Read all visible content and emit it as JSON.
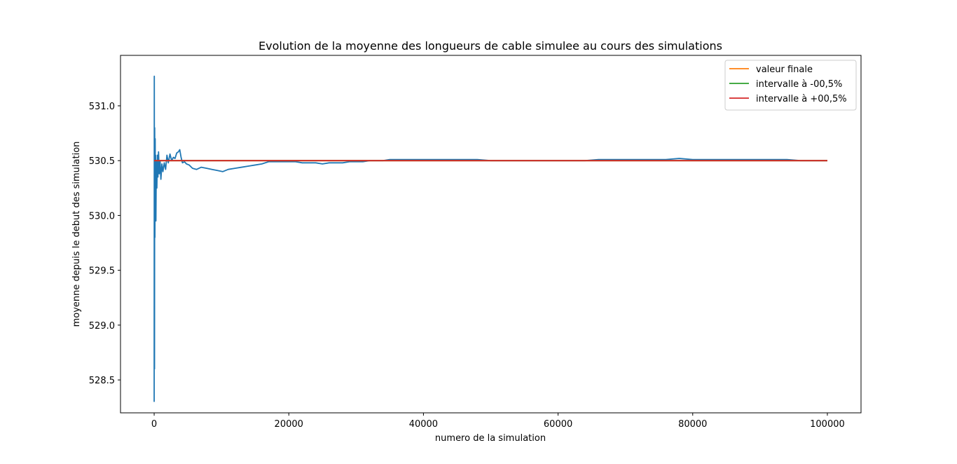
{
  "chart_data": {
    "type": "line",
    "title": "Evolution de la moyenne des longueurs de cable simulee au cours des simulations",
    "xlabel": "numero de la simulation",
    "ylabel": "moyenne depuis le debut des simulation",
    "xlim": [
      -5000,
      105000
    ],
    "ylim": [
      528.2,
      531.46
    ],
    "xticks": [
      0,
      20000,
      40000,
      60000,
      80000,
      100000
    ],
    "yticks": [
      528.5,
      529.0,
      529.5,
      530.0,
      530.5,
      531.0
    ],
    "ytick_labels": [
      "528.5",
      "529.0",
      "529.5",
      "530.0",
      "530.5",
      "531.0"
    ],
    "grid": false,
    "legend_position": "top-right",
    "series": [
      {
        "color": "#1f77b4",
        "x": [
          0,
          20,
          50,
          80,
          110,
          150,
          180,
          210,
          260,
          320,
          400,
          480,
          560,
          650,
          760,
          880,
          1000,
          1150,
          1300,
          1500,
          1700,
          1900,
          2100,
          2350,
          2600,
          2850,
          3100,
          3350,
          3600,
          3800,
          4000,
          4200,
          4500,
          4800,
          5200,
          5700,
          6300,
          7000,
          7800,
          8600,
          9400,
          10200,
          11000,
          12000,
          13000,
          14000,
          15000,
          16000,
          17000,
          18000,
          19000,
          20000,
          21000,
          22000,
          23000,
          24000,
          25000,
          26000,
          27000,
          28000,
          29000,
          30000,
          31000,
          32000,
          33000,
          34000,
          35000,
          36000,
          37000,
          38000,
          39000,
          40000,
          42000,
          44000,
          46000,
          48000,
          50000,
          52000,
          54000,
          56000,
          58000,
          60000,
          62000,
          64000,
          66000,
          68000,
          70000,
          72000,
          74000,
          76000,
          78000,
          80000,
          82000,
          84000,
          86000,
          88000,
          90000,
          92000,
          94000,
          96000,
          98000,
          100000
        ],
        "values": [
          528.3,
          531.27,
          528.6,
          530.8,
          529.8,
          530.7,
          530.0,
          530.55,
          529.95,
          530.5,
          530.25,
          530.55,
          530.35,
          530.58,
          530.38,
          530.5,
          530.33,
          530.47,
          530.4,
          530.48,
          530.42,
          530.55,
          530.48,
          530.56,
          530.5,
          530.53,
          530.52,
          530.57,
          530.58,
          530.6,
          530.53,
          530.48,
          530.49,
          530.47,
          530.46,
          530.43,
          530.42,
          530.44,
          530.43,
          530.42,
          530.41,
          530.4,
          530.42,
          530.43,
          530.44,
          530.45,
          530.46,
          530.47,
          530.49,
          530.49,
          530.49,
          530.49,
          530.49,
          530.48,
          530.48,
          530.48,
          530.47,
          530.48,
          530.48,
          530.48,
          530.49,
          530.49,
          530.49,
          530.5,
          530.5,
          530.5,
          530.51,
          530.51,
          530.51,
          530.51,
          530.51,
          530.51,
          530.51,
          530.51,
          530.51,
          530.51,
          530.5,
          530.5,
          530.5,
          530.5,
          530.5,
          530.5,
          530.5,
          530.5,
          530.51,
          530.51,
          530.51,
          530.51,
          530.51,
          530.51,
          530.52,
          530.51,
          530.51,
          530.51,
          530.51,
          530.51,
          530.51,
          530.51,
          530.51,
          530.5,
          530.5,
          530.5
        ]
      },
      {
        "name": "valeur finale",
        "color": "#ff7f0e",
        "x": [
          0,
          100000
        ],
        "values": [
          530.5,
          530.5
        ]
      },
      {
        "name": "intervalle à -00,5%",
        "color": "#2ca02c",
        "x": [
          0,
          100000
        ],
        "values": [
          530.5,
          530.5
        ]
      },
      {
        "name": "intervalle à +00,5%",
        "color": "#d62728",
        "x": [
          0,
          100000
        ],
        "values": [
          530.5,
          530.5
        ]
      }
    ]
  }
}
